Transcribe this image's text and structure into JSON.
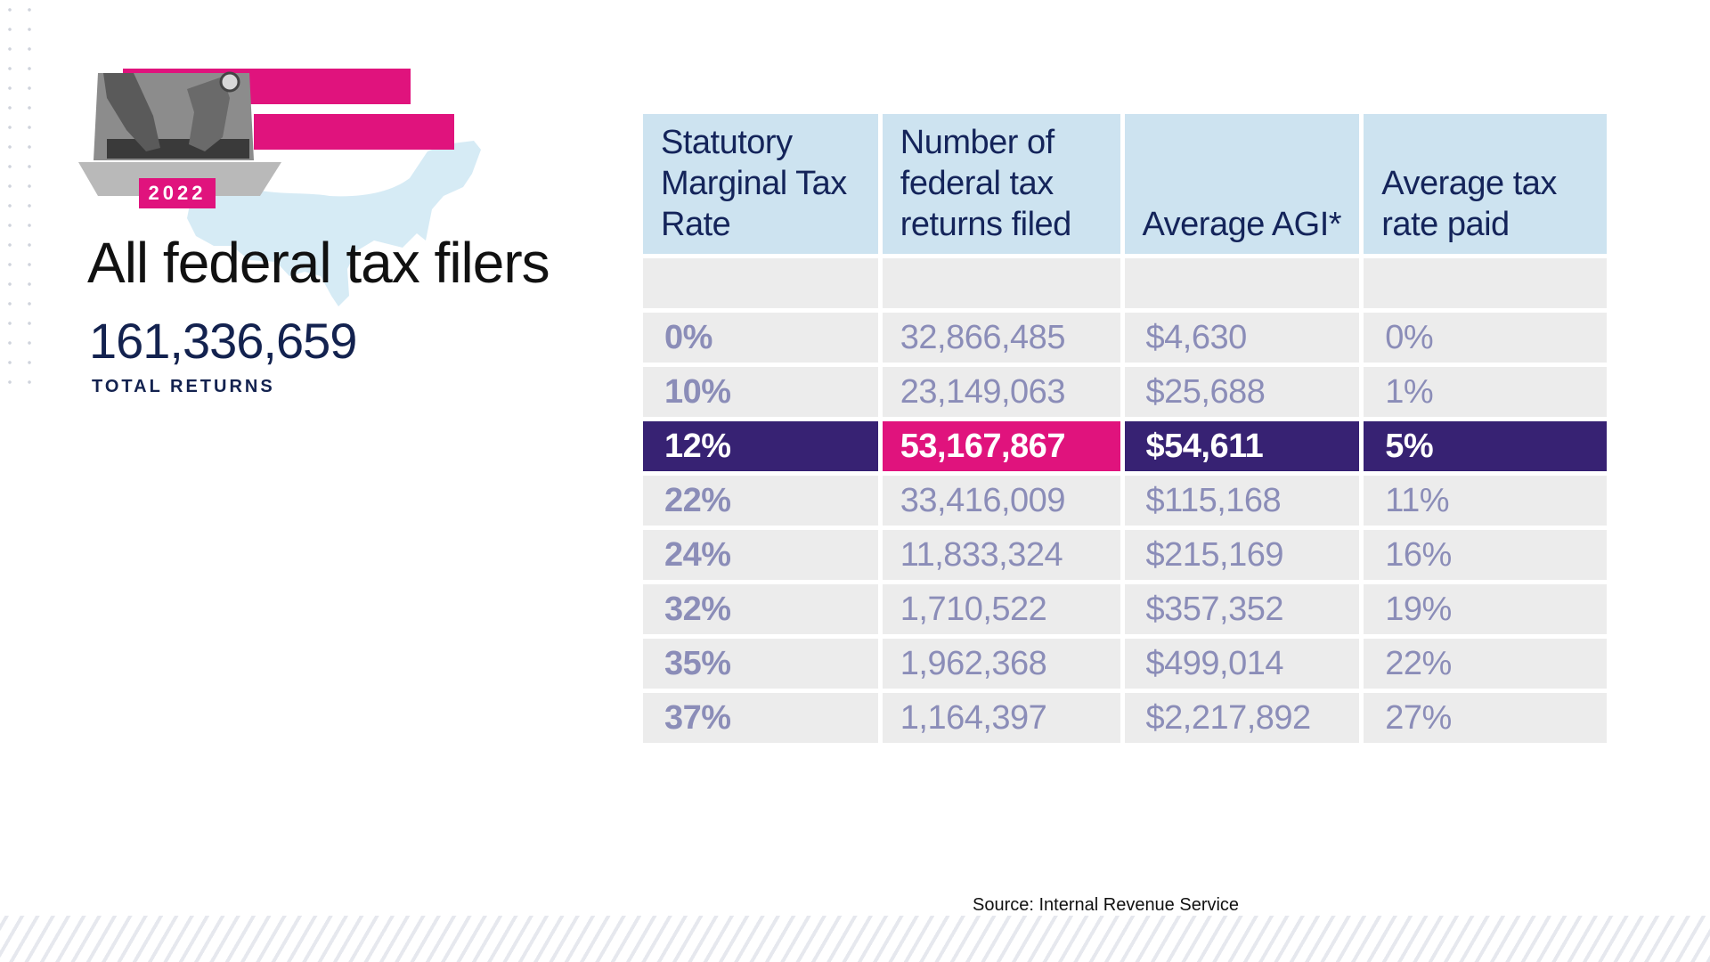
{
  "hero": {
    "year": "2022",
    "title": "All federal tax filers",
    "total_returns": "161,336,659",
    "total_label": "TOTAL RETURNS"
  },
  "colors": {
    "accent_pink": "#e0137d",
    "highlight_purple": "#372273",
    "header_blue": "#cde3f0",
    "cell_gray": "#ececec",
    "value_text": "#8b8db8",
    "navy": "#13224f"
  },
  "table": {
    "headers": [
      "Statutory Marginal Tax Rate",
      "Number of federal tax returns filed",
      "Average AGI*",
      "Average tax rate paid"
    ],
    "rows": [
      {
        "rate": "0%",
        "returns": "32,866,485",
        "agi": "$4,630",
        "avg_rate": "0%"
      },
      {
        "rate": "10%",
        "returns": "23,149,063",
        "agi": "$25,688",
        "avg_rate": "1%"
      },
      {
        "rate": "12%",
        "returns": "53,167,867",
        "agi": "$54,611",
        "avg_rate": "5%"
      },
      {
        "rate": "22%",
        "returns": "33,416,009",
        "agi": "$115,168",
        "avg_rate": "11%"
      },
      {
        "rate": "24%",
        "returns": "11,833,324",
        "agi": "$215,169",
        "avg_rate": "16%"
      },
      {
        "rate": "32%",
        "returns": "1,710,522",
        "agi": "$357,352",
        "avg_rate": "19%"
      },
      {
        "rate": "35%",
        "returns": "1,962,368",
        "agi": "$499,014",
        "avg_rate": "22%"
      },
      {
        "rate": "37%",
        "returns": "1,164,397",
        "agi": "$2,217,892",
        "avg_rate": "27%"
      }
    ],
    "highlighted_row": 2
  },
  "chart_data": {
    "type": "table",
    "columns": [
      "Statutory Marginal Tax Rate",
      "Number of federal tax returns filed",
      "Average AGI*",
      "Average tax rate paid"
    ],
    "rows": [
      [
        "0%",
        "32,866,485",
        "$4,630",
        "0%"
      ],
      [
        "10%",
        "23,149,063",
        "$25,688",
        "1%"
      ],
      [
        "12%",
        "53,167,867",
        "$54,611",
        "5%"
      ],
      [
        "22%",
        "33,416,009",
        "$115,168",
        "11%"
      ],
      [
        "24%",
        "11,833,324",
        "$215,169",
        "16%"
      ],
      [
        "32%",
        "1,710,522",
        "$357,352",
        "19%"
      ],
      [
        "35%",
        "1,962,368",
        "$499,014",
        "22%"
      ],
      [
        "37%",
        "1,164,397",
        "$2,217,892",
        "27%"
      ]
    ]
  },
  "source": "Source: Internal Revenue Service"
}
